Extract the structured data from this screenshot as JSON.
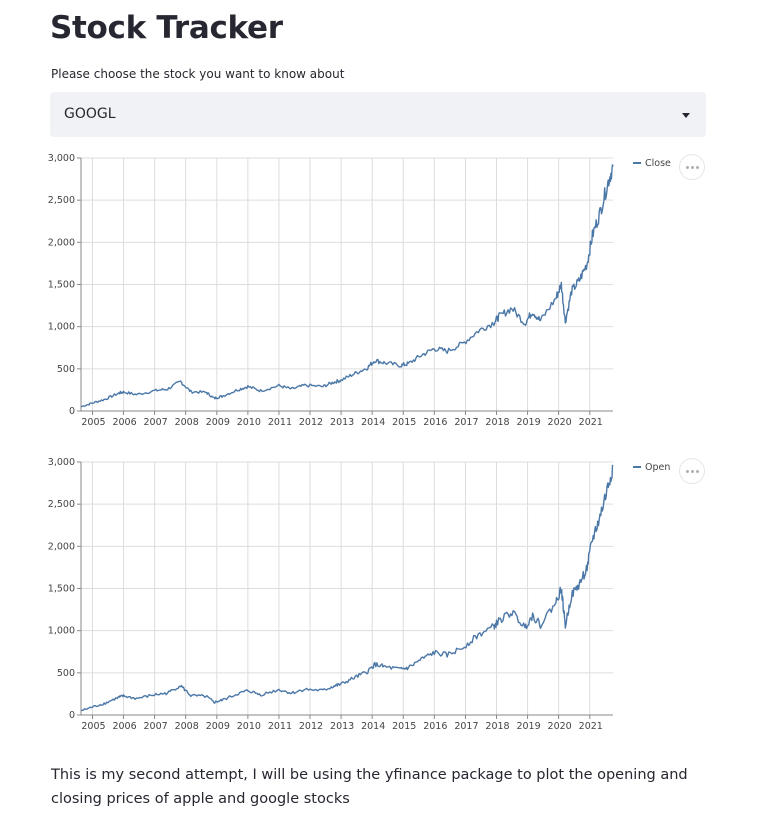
{
  "page": {
    "title": "Stock Tracker",
    "select_label": "Please choose the stock you want to know about",
    "select_value": "GOOGL",
    "paragraph": "This is my second attempt, I will be using the yfinance package to plot the opening and closing prices of apple and google stocks"
  },
  "colors": {
    "line": "#4c78a8",
    "grid": "#dddddd",
    "select_bg": "#f0f2f6"
  },
  "icons": {
    "select_arrow": "caret-down-icon",
    "chart_menu": "more-horizontal-icon"
  },
  "chart_data": [
    {
      "type": "line",
      "series": [
        {
          "name": "Close",
          "color": "#4c78a8"
        }
      ],
      "x_domain": [
        "2004-08-19",
        "2021-10-01"
      ],
      "x_ticks": [
        "2005",
        "2006",
        "2007",
        "2008",
        "2009",
        "2010",
        "2011",
        "2012",
        "2013",
        "2014",
        "2015",
        "2016",
        "2017",
        "2018",
        "2019",
        "2020",
        "2021"
      ],
      "ylim": [
        0,
        3000
      ],
      "y_ticks": [
        "0",
        "500",
        "1,000",
        "1,500",
        "2,000",
        "2,500",
        "3,000"
      ],
      "grid": true,
      "legend_position": "top-right",
      "points": [
        [
          "2004-08-19",
          50
        ],
        [
          "2005-01-01",
          95
        ],
        [
          "2005-06-01",
          140
        ],
        [
          "2005-11-01",
          210
        ],
        [
          "2006-01-01",
          225
        ],
        [
          "2006-06-01",
          195
        ],
        [
          "2007-01-01",
          240
        ],
        [
          "2007-06-01",
          260
        ],
        [
          "2007-11-01",
          350
        ],
        [
          "2008-03-01",
          230
        ],
        [
          "2008-09-01",
          220
        ],
        [
          "2008-12-01",
          150
        ],
        [
          "2009-03-01",
          175
        ],
        [
          "2009-09-01",
          250
        ],
        [
          "2010-01-01",
          290
        ],
        [
          "2010-06-01",
          240
        ],
        [
          "2011-01-01",
          300
        ],
        [
          "2011-06-01",
          260
        ],
        [
          "2011-11-01",
          305
        ],
        [
          "2012-06-01",
          290
        ],
        [
          "2012-10-01",
          340
        ],
        [
          "2013-01-01",
          365
        ],
        [
          "2013-06-01",
          440
        ],
        [
          "2013-11-01",
          510
        ],
        [
          "2014-02-01",
          600
        ],
        [
          "2014-06-01",
          570
        ],
        [
          "2014-12-01",
          540
        ],
        [
          "2015-03-01",
          560
        ],
        [
          "2015-08-01",
          660
        ],
        [
          "2016-01-01",
          740
        ],
        [
          "2016-06-01",
          710
        ],
        [
          "2016-12-01",
          800
        ],
        [
          "2017-06-01",
          950
        ],
        [
          "2017-12-01",
          1050
        ],
        [
          "2018-02-01",
          1120
        ],
        [
          "2018-07-01",
          1220
        ],
        [
          "2018-12-01",
          1040
        ],
        [
          "2019-03-01",
          1180
        ],
        [
          "2019-06-01",
          1070
        ],
        [
          "2019-12-01",
          1340
        ],
        [
          "2020-02-01",
          1500
        ],
        [
          "2020-03-20",
          1060
        ],
        [
          "2020-06-01",
          1420
        ],
        [
          "2020-09-01",
          1550
        ],
        [
          "2020-12-01",
          1750
        ],
        [
          "2021-02-01",
          2080
        ],
        [
          "2021-05-01",
          2350
        ],
        [
          "2021-08-01",
          2700
        ],
        [
          "2021-10-01",
          2900
        ]
      ]
    },
    {
      "type": "line",
      "series": [
        {
          "name": "Open",
          "color": "#4c78a8"
        }
      ],
      "x_domain": [
        "2004-08-19",
        "2021-10-01"
      ],
      "x_ticks": [
        "2005",
        "2006",
        "2007",
        "2008",
        "2009",
        "2010",
        "2011",
        "2012",
        "2013",
        "2014",
        "2015",
        "2016",
        "2017",
        "2018",
        "2019",
        "2020",
        "2021"
      ],
      "ylim": [
        0,
        3000
      ],
      "y_ticks": [
        "0",
        "500",
        "1,000",
        "1,500",
        "2,000",
        "2,500",
        "3,000"
      ],
      "grid": true,
      "legend_position": "top-right",
      "points": [
        [
          "2004-08-19",
          50
        ],
        [
          "2005-01-01",
          95
        ],
        [
          "2005-06-01",
          140
        ],
        [
          "2005-11-01",
          210
        ],
        [
          "2006-01-01",
          225
        ],
        [
          "2006-06-01",
          195
        ],
        [
          "2007-01-01",
          240
        ],
        [
          "2007-06-01",
          260
        ],
        [
          "2007-11-01",
          350
        ],
        [
          "2008-03-01",
          230
        ],
        [
          "2008-09-01",
          220
        ],
        [
          "2008-12-01",
          150
        ],
        [
          "2009-03-01",
          175
        ],
        [
          "2009-09-01",
          250
        ],
        [
          "2010-01-01",
          290
        ],
        [
          "2010-06-01",
          240
        ],
        [
          "2011-01-01",
          300
        ],
        [
          "2011-06-01",
          260
        ],
        [
          "2011-11-01",
          305
        ],
        [
          "2012-06-01",
          290
        ],
        [
          "2012-10-01",
          340
        ],
        [
          "2013-01-01",
          365
        ],
        [
          "2013-06-01",
          440
        ],
        [
          "2013-11-01",
          510
        ],
        [
          "2014-02-01",
          600
        ],
        [
          "2014-06-01",
          570
        ],
        [
          "2014-12-01",
          540
        ],
        [
          "2015-03-01",
          560
        ],
        [
          "2015-08-01",
          660
        ],
        [
          "2016-01-01",
          740
        ],
        [
          "2016-06-01",
          710
        ],
        [
          "2016-12-01",
          800
        ],
        [
          "2017-06-01",
          950
        ],
        [
          "2017-12-01",
          1050
        ],
        [
          "2018-02-01",
          1120
        ],
        [
          "2018-07-01",
          1220
        ],
        [
          "2018-12-01",
          1040
        ],
        [
          "2019-03-01",
          1180
        ],
        [
          "2019-06-01",
          1070
        ],
        [
          "2019-12-01",
          1340
        ],
        [
          "2020-02-01",
          1500
        ],
        [
          "2020-03-20",
          1060
        ],
        [
          "2020-06-01",
          1420
        ],
        [
          "2020-09-01",
          1550
        ],
        [
          "2020-12-01",
          1750
        ],
        [
          "2021-02-01",
          2080
        ],
        [
          "2021-05-01",
          2350
        ],
        [
          "2021-08-01",
          2700
        ],
        [
          "2021-10-01",
          2950
        ]
      ]
    }
  ]
}
